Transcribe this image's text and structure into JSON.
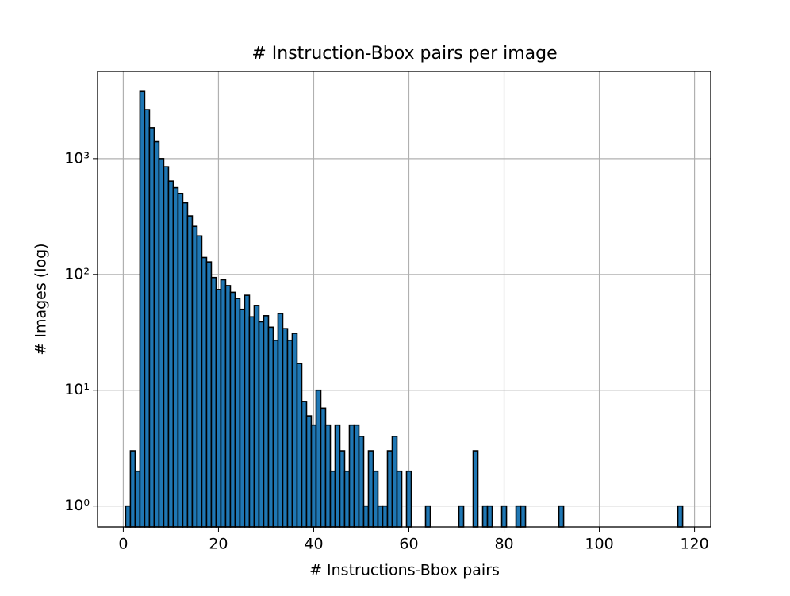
{
  "chart_data": {
    "type": "histogram",
    "title": "# Instruction-Bbox pairs per image",
    "x_label": "# Instructions-Bbox pairs",
    "y_label": "# Images (log)",
    "bins": [
      0.5,
      1.5,
      2.5,
      3.5,
      4.5,
      5.5,
      6.5,
      7.5,
      8.5,
      9.5,
      10.5,
      11.5,
      12.5,
      13.5,
      14.5,
      15.5,
      16.5,
      17.5,
      18.5,
      19.5,
      20.5,
      21.5,
      22.5,
      23.5,
      24.5,
      25.5,
      26.5,
      27.5,
      28.5,
      29.5,
      30.5,
      31.5,
      32.5,
      33.5,
      34.5,
      35.5,
      36.5,
      37.5,
      38.5,
      39.5,
      40.5,
      41.5,
      42.5,
      43.5,
      44.5,
      45.5,
      46.5,
      47.5,
      48.5,
      49.5,
      50.5,
      51.5,
      52.5,
      53.5,
      54.5,
      55.5,
      56.5,
      57.5,
      58.5,
      59.5,
      60.5,
      61.5,
      62.5,
      63.5,
      64.5,
      65.5,
      66.5,
      67.5,
      68.5,
      69.5,
      70.5,
      71.5,
      72.5,
      73.5,
      74.5,
      75.5,
      76.5,
      77.5,
      78.5,
      79.5,
      80.5,
      81.5,
      82.5,
      83.5,
      84.5,
      85.5,
      86.5,
      87.5,
      88.5,
      89.5,
      90.5,
      91.5,
      92.5,
      93.5,
      94.5,
      95.5,
      96.5,
      97.5,
      98.5,
      99.5,
      100.5,
      101.5,
      102.5,
      103.5,
      104.5,
      105.5,
      106.5,
      107.5,
      108.5,
      109.5,
      110.5,
      111.5,
      112.5,
      113.5,
      114.5,
      115.5,
      116.5,
      117.5
    ],
    "values": [
      1,
      3,
      2,
      3800,
      2650,
      1850,
      1400,
      1000,
      850,
      640,
      560,
      500,
      415,
      320,
      260,
      215,
      140,
      128,
      94,
      74,
      90,
      80,
      70,
      62,
      50,
      66,
      43,
      54,
      39,
      44,
      35,
      27,
      46,
      34,
      27,
      31,
      17,
      8,
      6,
      5,
      10,
      7,
      5,
      2,
      5,
      3,
      2,
      5,
      5,
      4,
      1,
      3,
      2,
      1,
      1,
      3,
      4,
      2,
      0,
      2,
      0,
      0,
      0,
      1,
      0,
      0,
      0,
      0,
      0,
      0,
      1,
      0,
      0,
      3,
      0,
      1,
      1,
      0,
      0,
      1,
      0,
      0,
      1,
      1,
      0,
      0,
      0,
      0,
      0,
      0,
      0,
      1,
      0,
      0,
      0,
      0,
      0,
      0,
      0,
      0,
      0,
      0,
      0,
      0,
      0,
      0,
      0,
      0,
      0,
      0,
      0,
      0,
      0,
      0,
      0,
      0,
      1
    ],
    "color": "#1f77b4",
    "edgecolor": "#000000",
    "xlim": [
      -5.4,
      123.4
    ],
    "xticks": [
      0,
      20,
      40,
      60,
      80,
      100,
      120
    ],
    "ylim": [
      0.66,
      5660
    ],
    "y_scale": "log",
    "yticks": [
      {
        "value": 1,
        "label": "10⁰"
      },
      {
        "value": 10,
        "label": "10¹"
      },
      {
        "value": 100,
        "label": "10²"
      },
      {
        "value": 1000,
        "label": "10³"
      }
    ],
    "grid": true
  }
}
